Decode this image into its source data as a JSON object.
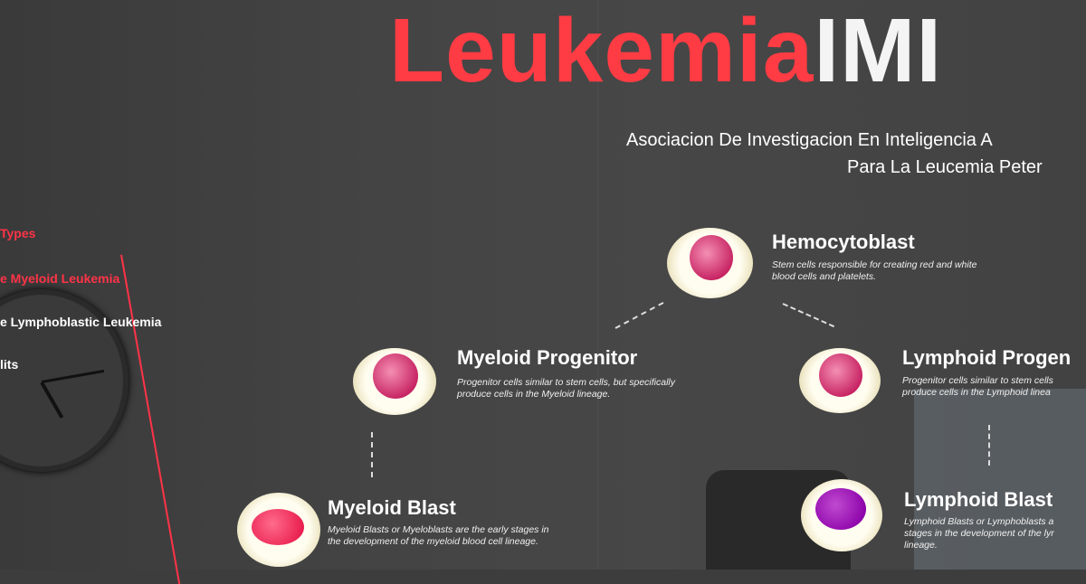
{
  "title": {
    "red": "Leukemia",
    "white": "IMI"
  },
  "subtitle": {
    "line1": "Asociacion De Investigacion En Inteligencia A",
    "line2": "Para La Leucemia Peter"
  },
  "menu": {
    "item1": "Types",
    "item2": "e Myeloid Leukemia",
    "item3": "e Lymphoblastic Leukemia",
    "item4": "lits"
  },
  "nodes": {
    "hemocytoblast": {
      "title": "Hemocytoblast",
      "desc1": "Stem cells responsible for creating red and white",
      "desc2": "blood cells and platelets."
    },
    "myeloid_progenitor": {
      "title": "Myeloid Progenitor",
      "desc1": "Progenitor cells similar to stem cells, but specifically",
      "desc2": "produce cells in the Myeloid lineage."
    },
    "lymphoid_progenitor": {
      "title": "Lymphoid Progen",
      "desc1": "Progenitor cells similar to stem cells",
      "desc2": "produce cells in the Lymphoid linea"
    },
    "myeloid_blast": {
      "title": "Myeloid Blast",
      "desc1": "Myeloid Blasts or Myeloblasts are the early stages in",
      "desc2": "the development of the myeloid blood cell lineage."
    },
    "lymphoid_blast": {
      "title": "Lymphoid Blast",
      "desc1": "Lymphoid Blasts or Lymphoblasts a",
      "desc2": "stages in the development of the lyr",
      "desc3": "lineage."
    }
  },
  "colors": {
    "accent_red": "#ff3b44",
    "background": "#3d3d3d",
    "nucleus_pink": "#c2185b",
    "nucleus_purple": "#8a00a8"
  }
}
